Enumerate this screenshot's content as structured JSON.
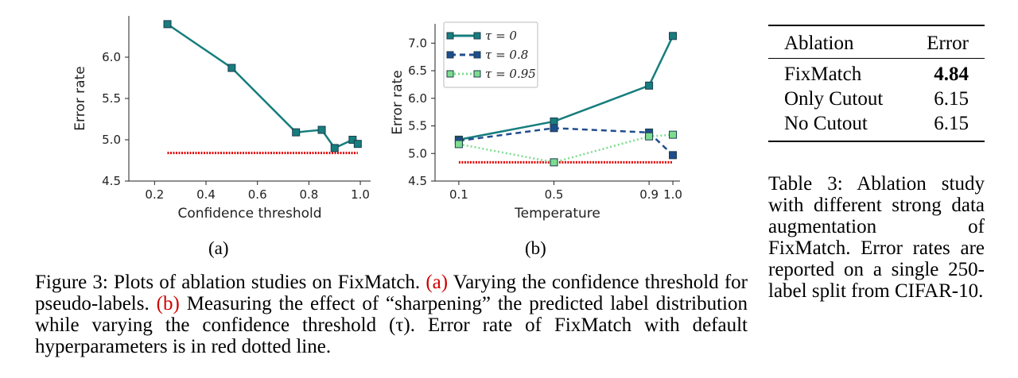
{
  "chart_data": [
    {
      "type": "line",
      "panel_label": "(a)",
      "xlabel": "Confidence threshold",
      "ylabel": "Error rate",
      "xlim": [
        0.1,
        1.04
      ],
      "ylim": [
        4.5,
        6.5
      ],
      "x_ticks": [
        "0.2",
        "0.4",
        "0.6",
        "0.8",
        "1.0"
      ],
      "y_ticks": [
        "4.5",
        "5.0",
        "5.5",
        "6.0"
      ],
      "series": [
        {
          "color": "#177d7d",
          "style": "solid",
          "marker": "square",
          "x": [
            0.25,
            0.5,
            0.75,
            0.85,
            0.9,
            0.97,
            0.99
          ],
          "y": [
            6.4,
            5.87,
            5.09,
            5.12,
            4.9,
            5.0,
            4.95
          ]
        }
      ],
      "reference_line": {
        "y": 4.84,
        "color": "#e00000",
        "style": "dotted",
        "x_range": [
          0.25,
          0.99
        ]
      }
    },
    {
      "type": "line",
      "panel_label": "(b)",
      "xlabel": "Temperature",
      "ylabel": "Error rate",
      "xlim": [
        0.0,
        1.03
      ],
      "ylim": [
        4.5,
        7.35
      ],
      "x_ticks": [
        "0.1",
        "0.5",
        "0.9",
        "1.0"
      ],
      "y_ticks": [
        "4.5",
        "5.0",
        "5.5",
        "6.0",
        "6.5",
        "7.0"
      ],
      "legend": {
        "position": "top-left"
      },
      "series": [
        {
          "name": "τ = 0",
          "color": "#177d7d",
          "style": "solid",
          "marker": "square",
          "x": [
            0.1,
            0.5,
            0.9,
            1.0
          ],
          "y": [
            5.25,
            5.58,
            6.23,
            7.13
          ]
        },
        {
          "name": "τ = 0.8",
          "color": "#1f4e8c",
          "style": "dashed",
          "marker": "square",
          "x": [
            0.1,
            0.5,
            0.9,
            1.0
          ],
          "y": [
            5.23,
            5.46,
            5.38,
            4.97
          ]
        },
        {
          "name": "τ = 0.95",
          "color": "#7ddc8f",
          "style": "dotted",
          "marker": "square",
          "x": [
            0.1,
            0.5,
            0.9,
            1.0
          ],
          "y": [
            5.17,
            4.84,
            5.31,
            5.34
          ]
        }
      ],
      "reference_line": {
        "y": 4.84,
        "color": "#e00000",
        "style": "dotted",
        "x_range": [
          0.1,
          1.0
        ]
      }
    }
  ],
  "figure_caption": {
    "prefix": "Figure 3: Plots of ablation studies on FixMatch. ",
    "ref_a": "(a)",
    "part_a": " Varying the confidence threshold for pseudo-labels. ",
    "ref_b": "(b)",
    "part_b": " Measuring the effect of “sharpening” the predicted label distribution while varying the confidence threshold (τ). Error rate of FixMatch with default hyperparameters is in red dotted line."
  },
  "table": {
    "headers": [
      "Ablation",
      "Error"
    ],
    "rows": [
      {
        "ablation": "FixMatch",
        "error": "4.84",
        "bold": true
      },
      {
        "ablation": "Only Cutout",
        "error": "6.15"
      },
      {
        "ablation": "No Cutout",
        "error": "6.15"
      }
    ],
    "caption": "Table 3: Ablation study with different strong data augmentation of FixMatch. Error rates are reported on a single 250-label split from CIFAR-10."
  },
  "colors": {
    "reference": "#e00000",
    "link": "#d00000"
  }
}
